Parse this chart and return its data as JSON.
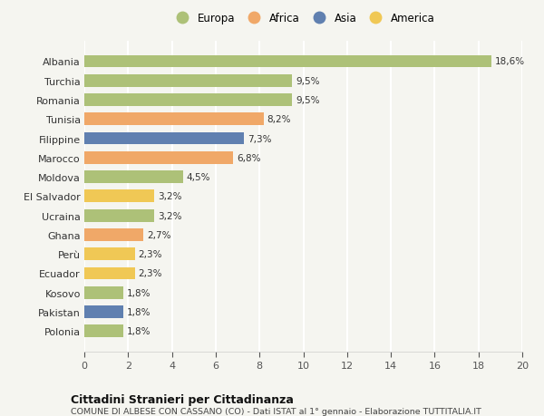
{
  "countries": [
    "Albania",
    "Turchia",
    "Romania",
    "Tunisia",
    "Filippine",
    "Marocco",
    "Moldova",
    "El Salvador",
    "Ucraina",
    "Ghana",
    "Perù",
    "Ecuador",
    "Kosovo",
    "Pakistan",
    "Polonia"
  ],
  "values": [
    18.6,
    9.5,
    9.5,
    8.2,
    7.3,
    6.8,
    4.5,
    3.2,
    3.2,
    2.7,
    2.3,
    2.3,
    1.8,
    1.8,
    1.8
  ],
  "regions": [
    "Europa",
    "Europa",
    "Europa",
    "Africa",
    "Asia",
    "Africa",
    "Europa",
    "America",
    "Europa",
    "Africa",
    "America",
    "America",
    "Europa",
    "Asia",
    "Europa"
  ],
  "region_colors": {
    "Europa": "#adc178",
    "Africa": "#f0a868",
    "Asia": "#6080b0",
    "America": "#f0c855"
  },
  "legend_labels": [
    "Europa",
    "Africa",
    "Asia",
    "America"
  ],
  "title": "Cittadini Stranieri per Cittadinanza",
  "subtitle": "COMUNE DI ALBESE CON CASSANO (CO) - Dati ISTAT al 1° gennaio - Elaborazione TUTTITALIA.IT",
  "xlim": [
    0,
    20
  ],
  "xticks": [
    0,
    2,
    4,
    6,
    8,
    10,
    12,
    14,
    16,
    18,
    20
  ],
  "background_color": "#f5f5f0",
  "grid_color": "#ffffff",
  "bar_height": 0.65
}
